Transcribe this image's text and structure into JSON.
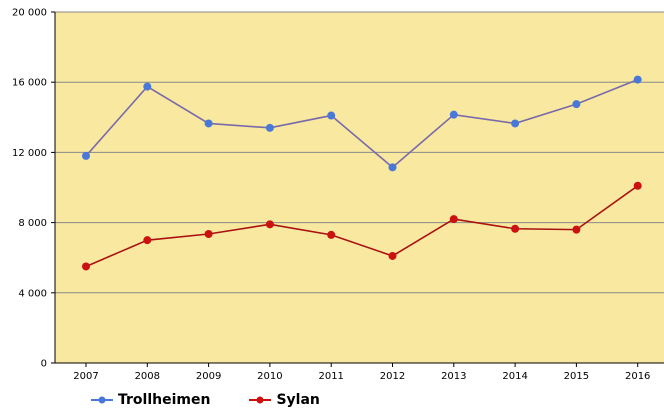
{
  "chart_data": {
    "type": "line",
    "categories": [
      "2007",
      "2008",
      "2009",
      "2010",
      "2011",
      "2012",
      "2013",
      "2014",
      "2015",
      "2016"
    ],
    "series": [
      {
        "name": "Trollheimen",
        "color": "#4a78d8",
        "line_color": "#7a6aaa",
        "values": [
          11800,
          15750,
          13650,
          13400,
          14100,
          11150,
          14150,
          13650,
          14750,
          16150
        ]
      },
      {
        "name": "Sylan",
        "color": "#cc1111",
        "line_color": "#aa1111",
        "values": [
          5500,
          7000,
          7350,
          7900,
          7300,
          6100,
          8200,
          7650,
          7600,
          10100
        ]
      }
    ],
    "y_ticks": [
      "0",
      "4 000",
      "8 000",
      "12 000",
      "16 000",
      "20 000"
    ],
    "ylim": [
      0,
      20000
    ],
    "y_tick_values": [
      0,
      4000,
      8000,
      12000,
      16000,
      20000
    ],
    "grid": "horizontal",
    "plot_background": "#f8e8a0",
    "legend_position": "bottom-left"
  }
}
